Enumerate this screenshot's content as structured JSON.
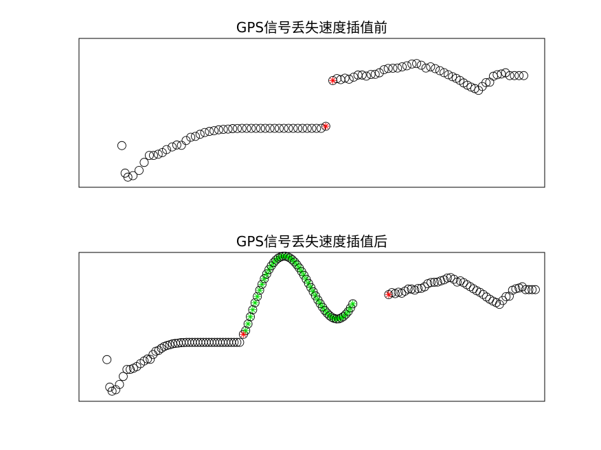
{
  "chart_data": [
    {
      "type": "scatter",
      "title": "GPS信号丢失速度插值前",
      "xlabel": "",
      "ylabel": "",
      "grid": false,
      "xlim": [
        0,
        100
      ],
      "ylim": [
        0,
        100
      ],
      "series": [
        {
          "role": "original",
          "marker": "circle-open",
          "color": "#000000",
          "points": [
            [
              9.2,
              28.0
            ],
            [
              9.9,
              9.5
            ],
            [
              10.5,
              6.8
            ],
            [
              11.6,
              7.8
            ],
            [
              12.9,
              11.3
            ],
            [
              14.0,
              16.7
            ],
            [
              15.1,
              21.4
            ],
            [
              16.0,
              21.4
            ],
            [
              17.0,
              22.2
            ],
            [
              17.9,
              23.3
            ],
            [
              18.8,
              25.3
            ],
            [
              20.0,
              27.1
            ],
            [
              21.0,
              28.4
            ],
            [
              22.0,
              28.2
            ],
            [
              23.0,
              31.4
            ],
            [
              24.0,
              33.6
            ],
            [
              25.0,
              34.2
            ],
            [
              26.0,
              35.6
            ],
            [
              27.0,
              36.8
            ],
            [
              28.0,
              37.5
            ],
            [
              29.0,
              38.0
            ],
            [
              30.0,
              38.6
            ],
            [
              31.0,
              38.9
            ],
            [
              32.0,
              39.1
            ],
            [
              33.0,
              39.4
            ],
            [
              34.0,
              39.5
            ],
            [
              35.0,
              39.6
            ],
            [
              36.0,
              39.6
            ],
            [
              37.0,
              39.6
            ],
            [
              38.0,
              39.6
            ],
            [
              39.0,
              39.6
            ],
            [
              40.0,
              39.6
            ],
            [
              41.0,
              39.6
            ],
            [
              42.0,
              39.6
            ],
            [
              43.0,
              39.6
            ],
            [
              44.0,
              39.6
            ],
            [
              45.0,
              39.6
            ],
            [
              46.0,
              39.6
            ],
            [
              47.0,
              39.6
            ],
            [
              48.0,
              39.6
            ],
            [
              49.0,
              39.6
            ],
            [
              50.0,
              39.6
            ],
            [
              51.0,
              39.6
            ],
            [
              52.0,
              39.6
            ],
            [
              53.0,
              41.0
            ],
            [
              54.5,
              71.7
            ],
            [
              55.4,
              73.0
            ],
            [
              56.2,
              72.3
            ],
            [
              57.1,
              73.3
            ],
            [
              58.0,
              72.6
            ],
            [
              59.0,
              74.0
            ],
            [
              59.9,
              75.4
            ],
            [
              60.8,
              75.4
            ],
            [
              61.7,
              74.7
            ],
            [
              62.7,
              75.8
            ],
            [
              63.6,
              75.9
            ],
            [
              64.5,
              76.9
            ],
            [
              65.5,
              79.0
            ],
            [
              66.4,
              79.8
            ],
            [
              67.4,
              80.0
            ],
            [
              68.4,
              80.1
            ],
            [
              69.4,
              80.9
            ],
            [
              70.4,
              81.6
            ],
            [
              71.5,
              82.8
            ],
            [
              72.5,
              83.1
            ],
            [
              73.5,
              82.0
            ],
            [
              74.5,
              80.1
            ],
            [
              75.5,
              80.9
            ],
            [
              76.5,
              79.7
            ],
            [
              77.5,
              78.3
            ],
            [
              78.4,
              77.0
            ],
            [
              79.3,
              75.6
            ],
            [
              80.2,
              74.3
            ],
            [
              81.0,
              73.2
            ],
            [
              81.8,
              71.8
            ],
            [
              82.6,
              70.1
            ],
            [
              83.4,
              68.6
            ],
            [
              84.2,
              67.3
            ],
            [
              85.0,
              66.3
            ],
            [
              85.8,
              65.1
            ],
            [
              86.6,
              67.7
            ],
            [
              87.4,
              70.3
            ],
            [
              88.2,
              70.6
            ],
            [
              89.0,
              74.6
            ],
            [
              89.8,
              75.6
            ],
            [
              90.7,
              76.1
            ],
            [
              91.6,
              76.9
            ],
            [
              92.5,
              75.0
            ],
            [
              93.5,
              75.0
            ],
            [
              94.5,
              75.0
            ],
            [
              95.5,
              75.0
            ]
          ]
        },
        {
          "role": "gap-endpoints",
          "marker": "star",
          "color": "#ff0000",
          "points": [
            [
              53.0,
              41.0
            ],
            [
              54.5,
              71.7
            ]
          ]
        }
      ]
    },
    {
      "type": "scatter",
      "title": "GPS信号丢失速度插值后",
      "xlabel": "",
      "ylabel": "",
      "grid": false,
      "xlim": [
        0,
        100
      ],
      "ylim": [
        0,
        100
      ],
      "series": [
        {
          "role": "original-before-gap",
          "marker": "circle-open",
          "color": "#000000",
          "points": [
            [
              6.0,
              28.0
            ],
            [
              6.6,
              9.5
            ],
            [
              7.1,
              6.8
            ],
            [
              7.9,
              7.8
            ],
            [
              8.7,
              11.3
            ],
            [
              9.5,
              16.7
            ],
            [
              10.3,
              21.4
            ],
            [
              11.0,
              21.4
            ],
            [
              11.7,
              22.2
            ],
            [
              12.4,
              23.3
            ],
            [
              13.2,
              25.3
            ],
            [
              14.0,
              27.1
            ],
            [
              14.7,
              28.4
            ],
            [
              15.3,
              28.2
            ],
            [
              15.9,
              31.4
            ],
            [
              16.5,
              33.6
            ],
            [
              17.1,
              34.2
            ],
            [
              17.7,
              35.6
            ],
            [
              18.3,
              36.8
            ],
            [
              18.9,
              37.5
            ],
            [
              19.5,
              38.0
            ],
            [
              20.1,
              38.6
            ],
            [
              20.7,
              38.9
            ],
            [
              21.3,
              39.1
            ],
            [
              21.9,
              39.4
            ],
            [
              22.5,
              39.5
            ],
            [
              23.1,
              39.6
            ],
            [
              23.7,
              39.6
            ],
            [
              24.3,
              39.6
            ],
            [
              24.9,
              39.6
            ],
            [
              25.5,
              39.6
            ],
            [
              26.1,
              39.6
            ],
            [
              26.7,
              39.6
            ],
            [
              27.3,
              39.6
            ],
            [
              27.9,
              39.6
            ],
            [
              28.5,
              39.6
            ],
            [
              29.1,
              39.6
            ],
            [
              29.7,
              39.6
            ],
            [
              30.3,
              39.6
            ],
            [
              30.9,
              39.6
            ],
            [
              31.5,
              39.6
            ],
            [
              32.1,
              39.6
            ],
            [
              32.7,
              39.6
            ],
            [
              33.3,
              39.6
            ],
            [
              33.9,
              39.6
            ],
            [
              34.5,
              39.6
            ],
            [
              35.3,
              45.0
            ]
          ]
        },
        {
          "role": "interpolated",
          "marker": "circle-open+star",
          "color": "#00dd00",
          "points": [
            [
              35.8,
              47.5
            ],
            [
              36.3,
              52.0
            ],
            [
              36.8,
              56.8
            ],
            [
              37.3,
              61.5
            ],
            [
              37.8,
              66.2
            ],
            [
              38.3,
              70.4
            ],
            [
              38.8,
              74.6
            ],
            [
              39.3,
              78.6
            ],
            [
              39.8,
              82.3
            ],
            [
              40.3,
              85.5
            ],
            [
              40.8,
              88.5
            ],
            [
              41.3,
              91.0
            ],
            [
              41.8,
              93.2
            ],
            [
              42.3,
              94.9
            ],
            [
              42.8,
              96.2
            ],
            [
              43.3,
              97.0
            ],
            [
              43.8,
              97.5
            ],
            [
              44.3,
              97.5
            ],
            [
              44.8,
              97.1
            ],
            [
              45.3,
              96.3
            ],
            [
              45.8,
              95.1
            ],
            [
              46.3,
              93.6
            ],
            [
              46.8,
              91.7
            ],
            [
              47.3,
              89.6
            ],
            [
              47.8,
              87.2
            ],
            [
              48.3,
              84.7
            ],
            [
              48.8,
              82.0
            ],
            [
              49.3,
              79.2
            ],
            [
              49.8,
              76.4
            ],
            [
              50.3,
              73.6
            ],
            [
              50.8,
              70.8
            ],
            [
              51.3,
              68.1
            ],
            [
              51.8,
              65.6
            ],
            [
              52.3,
              63.2
            ],
            [
              52.8,
              61.0
            ],
            [
              53.3,
              59.2
            ],
            [
              53.8,
              57.6
            ],
            [
              54.3,
              56.4
            ],
            [
              54.8,
              55.7
            ],
            [
              55.3,
              55.3
            ],
            [
              55.8,
              55.4
            ],
            [
              56.3,
              56.0
            ],
            [
              56.8,
              57.0
            ],
            [
              57.3,
              58.5
            ],
            [
              57.8,
              60.3
            ],
            [
              58.3,
              62.7
            ],
            [
              58.8,
              65.5
            ]
          ]
        },
        {
          "role": "original-after-gap",
          "marker": "circle-open",
          "color": "#000000",
          "points": [
            [
              66.5,
              71.7
            ],
            [
              67.2,
              73.0
            ],
            [
              67.9,
              72.3
            ],
            [
              68.6,
              73.3
            ],
            [
              69.3,
              72.6
            ],
            [
              70.0,
              74.0
            ],
            [
              70.7,
              75.4
            ],
            [
              71.4,
              75.4
            ],
            [
              72.1,
              74.7
            ],
            [
              72.8,
              75.8
            ],
            [
              73.5,
              75.9
            ],
            [
              74.2,
              76.9
            ],
            [
              74.9,
              79.0
            ],
            [
              75.6,
              79.8
            ],
            [
              76.3,
              80.0
            ],
            [
              77.0,
              80.1
            ],
            [
              77.7,
              80.9
            ],
            [
              78.4,
              81.6
            ],
            [
              79.1,
              82.8
            ],
            [
              79.8,
              83.1
            ],
            [
              80.5,
              82.0
            ],
            [
              81.2,
              80.1
            ],
            [
              81.9,
              80.9
            ],
            [
              82.6,
              79.7
            ],
            [
              83.3,
              78.3
            ],
            [
              84.0,
              77.0
            ],
            [
              84.7,
              75.6
            ],
            [
              85.4,
              74.3
            ],
            [
              86.1,
              73.2
            ],
            [
              86.8,
              71.8
            ],
            [
              87.5,
              70.1
            ],
            [
              88.2,
              68.6
            ],
            [
              88.9,
              67.3
            ],
            [
              89.6,
              66.3
            ],
            [
              90.3,
              65.1
            ],
            [
              91.0,
              67.7
            ],
            [
              91.7,
              70.3
            ],
            [
              92.4,
              70.6
            ],
            [
              93.1,
              74.6
            ],
            [
              93.8,
              75.6
            ],
            [
              94.5,
              76.1
            ],
            [
              95.2,
              76.9
            ],
            [
              95.9,
              75.0
            ],
            [
              96.6,
              75.0
            ],
            [
              97.3,
              75.0
            ],
            [
              98.0,
              75.0
            ]
          ]
        },
        {
          "role": "gap-endpoints",
          "marker": "star",
          "color": "#ff0000",
          "points": [
            [
              35.3,
              45.0
            ],
            [
              66.5,
              71.7
            ]
          ]
        }
      ]
    }
  ]
}
